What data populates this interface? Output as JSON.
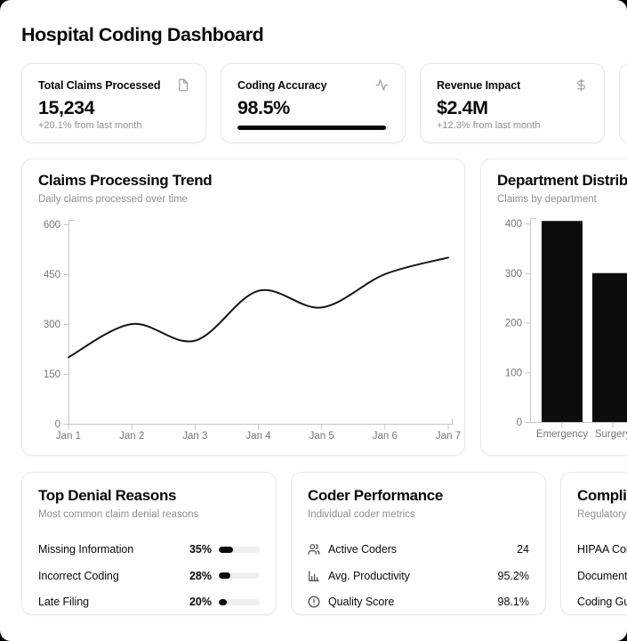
{
  "app": {
    "title": "Hospital Coding Dashboard"
  },
  "stats": {
    "cards": [
      {
        "label": "Total Claims Processed",
        "value": "15,234",
        "note": "+20.1% from last month",
        "icon": "file-icon"
      },
      {
        "label": "Coding Accuracy",
        "value": "98.5%",
        "progress": 98.5,
        "icon": "activity-icon"
      },
      {
        "label": "Revenue Impact",
        "value": "$2.4M",
        "note": "+12.3% from last month",
        "icon": "dollar-icon"
      },
      {
        "label": "",
        "value": "",
        "note": ""
      }
    ]
  },
  "chart_data": [
    {
      "type": "line",
      "title": "Claims Processing Trend",
      "subtitle": "Daily claims processed over time",
      "x": [
        "Jan 1",
        "Jan 2",
        "Jan 3",
        "Jan 4",
        "Jan 5",
        "Jan 6",
        "Jan 7"
      ],
      "series": [
        {
          "name": "claims",
          "values": [
            200,
            300,
            250,
            400,
            350,
            450,
            500
          ]
        }
      ],
      "xlabel": "",
      "ylabel": "",
      "ylim": [
        0,
        600
      ],
      "yticks": [
        0,
        150,
        300,
        450,
        600
      ],
      "grid": false,
      "legend": "none",
      "line_color": "#141414"
    },
    {
      "type": "bar",
      "title": "Department Distribution",
      "subtitle": "Claims by department",
      "categories": [
        "Emergency",
        "Surgery"
      ],
      "values": [
        405,
        300
      ],
      "xlabel": "",
      "ylabel": "",
      "ylim": [
        0,
        420
      ],
      "yticks": [
        0,
        100,
        200,
        300,
        400
      ],
      "grid": false,
      "legend": "none",
      "bar_color": "#0c0c0c"
    }
  ],
  "bottom": {
    "denial": {
      "title": "Top Denial Reasons",
      "subtitle": "Most common claim denial reasons",
      "rows": [
        {
          "label": "Missing Information",
          "percent": 35
        },
        {
          "label": "Incorrect Coding",
          "percent": 28
        },
        {
          "label": "Late Filing",
          "percent": 20
        }
      ]
    },
    "coder": {
      "title": "Coder Performance",
      "subtitle": "Individual coder metrics",
      "rows": [
        {
          "label": "Active Coders",
          "value": "24",
          "icon": "users-icon"
        },
        {
          "label": "Avg. Productivity",
          "value": "95.2%",
          "icon": "bar-chart-icon"
        },
        {
          "label": "Quality Score",
          "value": "98.1%",
          "icon": "alert-circle-icon"
        }
      ]
    },
    "compliance": {
      "title": "Compliance Status",
      "subtitle": "Regulatory compliance overview",
      "rows": [
        {
          "label": "HIPAA Compliance"
        },
        {
          "label": "Documentation"
        },
        {
          "label": "Coding Guidelines"
        }
      ]
    }
  },
  "colors": {
    "accent": "#0a0a0a",
    "muted": "#8f8f8f",
    "axis_line": "#c6c6c6",
    "tick_label": "#767676",
    "card_border": "#e8e8e8",
    "track": "#efefef"
  }
}
